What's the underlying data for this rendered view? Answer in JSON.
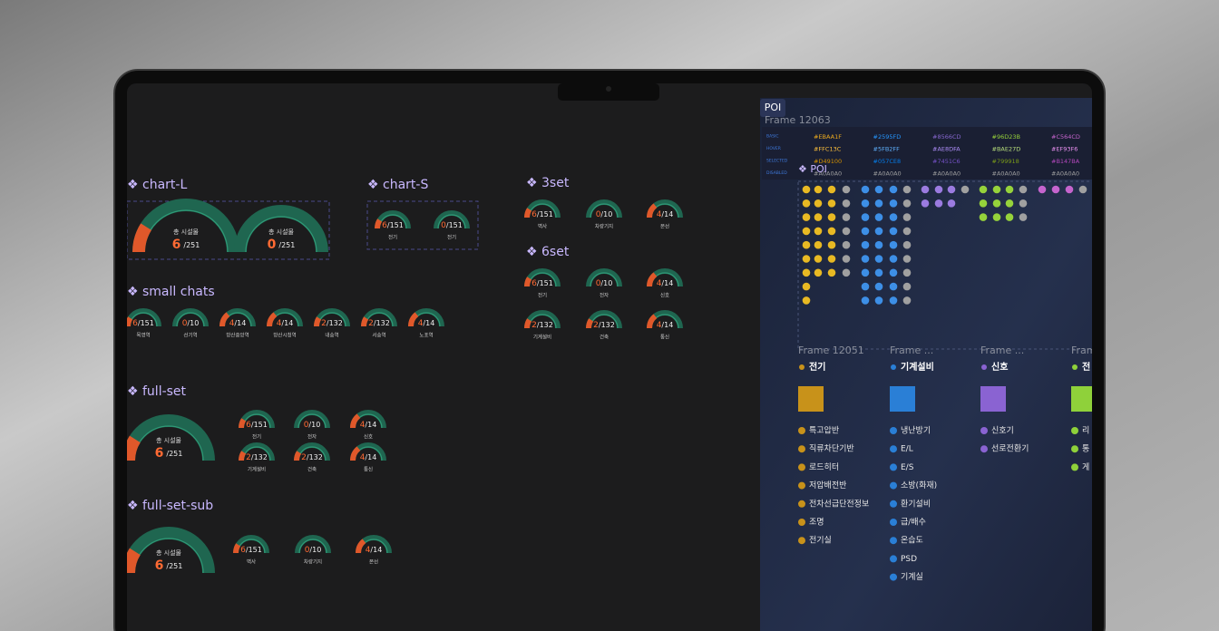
{
  "sections": [
    {
      "title": "❖ chart-L",
      "big": [
        {
          "caption": "총 시설물",
          "value": 6,
          "total": "/251"
        },
        {
          "caption": "총 시설물",
          "value": 0,
          "total": "/251"
        }
      ],
      "small": []
    },
    {
      "title": "❖ chart-S",
      "big": [],
      "small": [
        {
          "value": 6,
          "total": "/151",
          "label": "전기"
        },
        {
          "value": 0,
          "total": "/151",
          "label": "전기"
        }
      ]
    },
    {
      "title": "❖ 3set",
      "big": [],
      "small": [
        {
          "value": 6,
          "total": "/151",
          "label": "벽사"
        },
        {
          "value": 0,
          "total": "/10",
          "label": "차량기지"
        },
        {
          "value": 4,
          "total": "/14",
          "label": "본선"
        }
      ]
    },
    {
      "title": "❖ 6set",
      "big": [],
      "small": [
        {
          "value": 6,
          "total": "/151",
          "label": "전기"
        },
        {
          "value": 0,
          "total": "/10",
          "label": "전자"
        },
        {
          "value": 4,
          "total": "/14",
          "label": "신호"
        },
        {
          "value": 2,
          "total": "/132",
          "label": "기계설비"
        },
        {
          "value": 2,
          "total": "/132",
          "label": "건축"
        },
        {
          "value": 4,
          "total": "/14",
          "label": "통신"
        }
      ]
    },
    {
      "title": "❖ small chats",
      "big": [],
      "small": [
        {
          "value": 6,
          "total": "/151",
          "label": "목영역"
        },
        {
          "value": 0,
          "total": "/10",
          "label": "선기역"
        },
        {
          "value": 4,
          "total": "/14",
          "label": "방산중앙역"
        },
        {
          "value": 4,
          "total": "/14",
          "label": "방산시청역"
        },
        {
          "value": 2,
          "total": "/132",
          "label": "내송역"
        },
        {
          "value": 2,
          "total": "/132",
          "label": "서송역"
        },
        {
          "value": 4,
          "total": "/14",
          "label": "노포역"
        }
      ]
    },
    {
      "title": "❖ full-set",
      "big": [
        {
          "caption": "총 시설물",
          "value": 6,
          "total": "/251"
        }
      ],
      "small": [
        {
          "value": 6,
          "total": "/151",
          "label": "전기"
        },
        {
          "value": 0,
          "total": "/10",
          "label": "전자"
        },
        {
          "value": 4,
          "total": "/14",
          "label": "신호"
        },
        {
          "value": 2,
          "total": "/132",
          "label": "기계설비"
        },
        {
          "value": 2,
          "total": "/132",
          "label": "건축"
        },
        {
          "value": 4,
          "total": "/14",
          "label": "통신"
        }
      ]
    },
    {
      "title": "❖ full-set-sub",
      "big": [
        {
          "caption": "총 시설물",
          "value": 6,
          "total": "/251"
        }
      ],
      "small": [
        {
          "value": 6,
          "total": "/151",
          "label": "벽사"
        },
        {
          "value": 0,
          "total": "/10",
          "label": "차량기지"
        },
        {
          "value": 4,
          "total": "/14",
          "label": "본선"
        }
      ]
    }
  ],
  "poi": {
    "badge": "POI",
    "frame_title": "Frame 12063",
    "states": [
      "BASIC",
      "HOVER",
      "SELECTED",
      "DISABLED"
    ],
    "swatches": [
      [
        "#EBAA1F",
        "#FFC13C",
        "#D49100",
        "#A0A0A0"
      ],
      [
        "#2595FD",
        "#5FB2FF",
        "#057CE8",
        "#A0A0A0"
      ],
      [
        "#8566CD",
        "#AE8DFA",
        "#7451C6",
        "#A0A0A0"
      ],
      [
        "#96D23B",
        "#BAE27D",
        "#799918",
        "#A0A0A0"
      ],
      [
        "#C564CD",
        "#EF93F6",
        "#B147BA",
        "#A0A0A0"
      ]
    ],
    "group_title": "❖ POI",
    "frames": [
      {
        "frame": "Frame 12051",
        "category": "전기",
        "color": "#c8921a",
        "items": [
          "특고압반",
          "직류차단기반",
          "로드히터",
          "저압배전반",
          "전차선급단전정보",
          "조명",
          "전기실"
        ]
      },
      {
        "frame": "Frame ...",
        "category": "기계설비",
        "color": "#2a7fd6",
        "items": [
          "냉난방기",
          "E/L",
          "E/S",
          "소방(화재)",
          "환기설비",
          "급/배수",
          "온습도",
          "PSD",
          "기계실"
        ]
      },
      {
        "frame": "Frame ...",
        "category": "신호",
        "color": "#8a63d2",
        "items": [
          "신호기",
          "선로전환기"
        ]
      },
      {
        "frame": "Fram",
        "category": "전",
        "color": "#8fd13a",
        "items": [
          "리",
          "통",
          "게"
        ]
      }
    ]
  }
}
